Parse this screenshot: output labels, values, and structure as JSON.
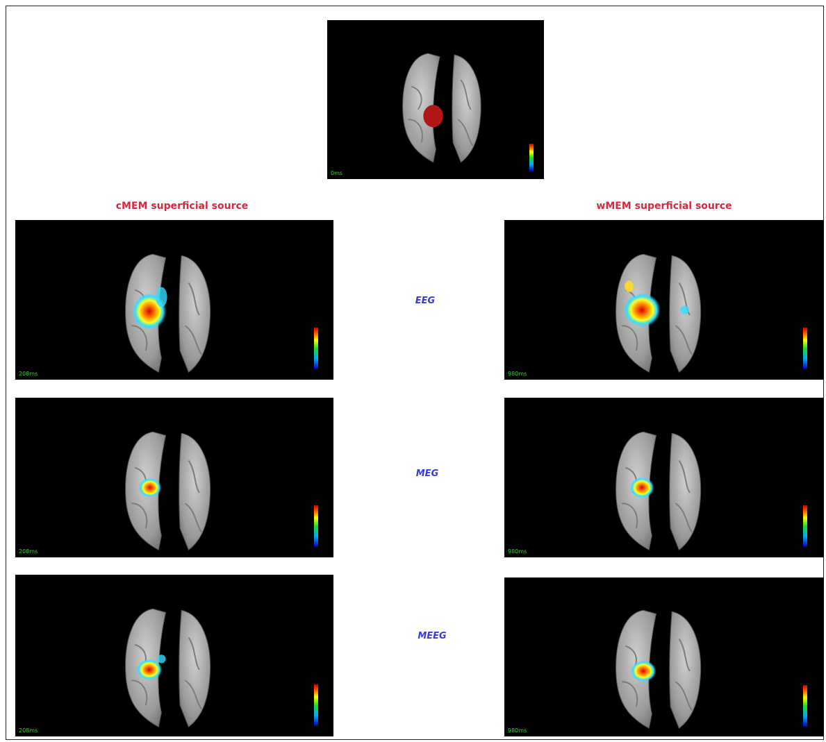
{
  "top": {
    "time": "0ms"
  },
  "left_column": {
    "title": "cMEM superficial source",
    "time": "208ms",
    "panels": [
      {
        "modality": "EEG",
        "time": "208ms"
      },
      {
        "modality": "MEG",
        "time": "208ms"
      },
      {
        "modality": "MEEG",
        "time": "208ms"
      }
    ]
  },
  "right_column": {
    "title": "wMEM superficial source",
    "time": "980ms",
    "panels": [
      {
        "modality": "EEG",
        "time": "980ms"
      },
      {
        "modality": "MEG",
        "time": "980ms"
      },
      {
        "modality": "MEEG",
        "time": "980ms"
      }
    ]
  },
  "modalities": [
    "EEG",
    "MEG",
    "MEEG"
  ],
  "colors": {
    "title": "#d42a3c",
    "modality": "#3a3ad8",
    "timestamp": "#37d437",
    "background_panel": "#000000",
    "simulated_source": "#b01818"
  }
}
